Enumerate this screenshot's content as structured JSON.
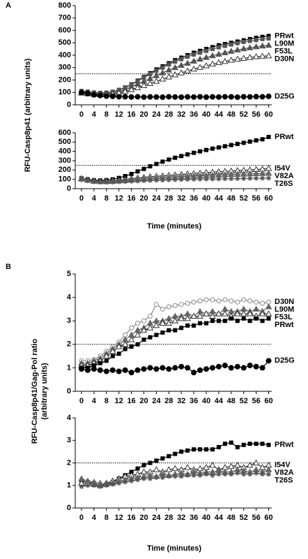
{
  "panels": [
    {
      "label": "A",
      "y_label": [
        "RFU-Casp8p41 (arbitrary units)"
      ],
      "x_label": "Time (minutes)"
    },
    {
      "label": "B",
      "y_label": [
        "RFU-Casp8p41/Gag-Pol ratio",
        "(arbitrary units)"
      ],
      "x_label": "Time (minutes)"
    }
  ],
  "chart_data": [
    {
      "type": "line",
      "xlim": [
        -2,
        61
      ],
      "xticks": [
        0,
        4,
        8,
        12,
        16,
        20,
        24,
        28,
        32,
        36,
        40,
        44,
        48,
        52,
        56,
        60
      ],
      "ylim": [
        0,
        800
      ],
      "yticks": [
        0,
        100,
        200,
        300,
        400,
        500,
        600,
        700,
        800
      ],
      "reference_line": 250,
      "x": [
        0,
        2,
        4,
        6,
        8,
        10,
        12,
        14,
        16,
        18,
        20,
        22,
        24,
        26,
        28,
        30,
        32,
        34,
        36,
        38,
        40,
        42,
        44,
        46,
        48,
        50,
        52,
        54,
        56,
        58,
        60
      ],
      "series": [
        {
          "name": "PRwt",
          "color": "#000000",
          "marker": "square",
          "values": [
            110,
            105,
            98,
            95,
            97,
            105,
            120,
            140,
            165,
            195,
            225,
            255,
            285,
            310,
            335,
            360,
            380,
            400,
            420,
            435,
            450,
            465,
            480,
            490,
            500,
            510,
            520,
            530,
            540,
            548,
            555
          ]
        },
        {
          "name": "L90M",
          "color": "#555555",
          "marker": "square",
          "values": [
            105,
            100,
            95,
            92,
            95,
            103,
            118,
            138,
            162,
            190,
            220,
            248,
            275,
            300,
            325,
            348,
            368,
            388,
            405,
            420,
            435,
            450,
            463,
            475,
            487,
            497,
            507,
            515,
            522,
            530,
            535
          ]
        },
        {
          "name": "F53L",
          "color": "#555555",
          "marker": "triangle",
          "values": [
            100,
            95,
            90,
            88,
            90,
            96,
            108,
            125,
            145,
            168,
            190,
            212,
            235,
            258,
            280,
            300,
            318,
            335,
            352,
            368,
            382,
            396,
            408,
            420,
            432,
            442,
            452,
            460,
            468,
            475,
            480
          ]
        },
        {
          "name": "D30N",
          "color": "#333333",
          "marker": "open-triangle",
          "values": [
            95,
            90,
            85,
            82,
            84,
            88,
            96,
            108,
            122,
            138,
            155,
            172,
            190,
            208,
            225,
            242,
            258,
            273,
            288,
            302,
            315,
            328,
            340,
            350,
            360,
            368,
            375,
            382,
            388,
            392,
            395
          ]
        },
        {
          "name": "D25G",
          "color": "#000000",
          "marker": "circle",
          "values": [
            100,
            90,
            80,
            75,
            70,
            68,
            65,
            65,
            63,
            65,
            62,
            64,
            63,
            62,
            65,
            63,
            62,
            64,
            63,
            65,
            62,
            64,
            63,
            65,
            64,
            62,
            65,
            64,
            66,
            65,
            68
          ]
        }
      ]
    },
    {
      "type": "line",
      "xlim": [
        -2,
        61
      ],
      "xticks": [
        0,
        4,
        8,
        12,
        16,
        20,
        24,
        28,
        32,
        36,
        40,
        44,
        48,
        52,
        56,
        60
      ],
      "ylim": [
        0,
        600
      ],
      "yticks": [
        0,
        100,
        200,
        300,
        400,
        500,
        600
      ],
      "reference_line": 250,
      "x": [
        0,
        2,
        4,
        6,
        8,
        10,
        12,
        14,
        16,
        18,
        20,
        22,
        24,
        26,
        28,
        30,
        32,
        34,
        36,
        38,
        40,
        42,
        44,
        46,
        48,
        50,
        52,
        54,
        56,
        58,
        60
      ],
      "series": [
        {
          "name": "PRwt",
          "color": "#000000",
          "marker": "square",
          "values": [
            110,
            100,
            90,
            88,
            92,
            100,
            115,
            135,
            158,
            185,
            212,
            240,
            265,
            290,
            312,
            332,
            350,
            368,
            385,
            400,
            415,
            430,
            442,
            455,
            468,
            480,
            492,
            505,
            518,
            530,
            555
          ]
        },
        {
          "name": "I54V",
          "color": "#333333",
          "marker": "open-triangle",
          "values": [
            110,
            95,
            85,
            80,
            80,
            85,
            92,
            100,
            108,
            115,
            122,
            128,
            133,
            138,
            143,
            148,
            153,
            158,
            163,
            168,
            173,
            178,
            182,
            186,
            190,
            194,
            198,
            202,
            206,
            210,
            218
          ]
        },
        {
          "name": "V82A",
          "color": "#666666",
          "marker": "triangle",
          "values": [
            105,
            90,
            80,
            75,
            75,
            78,
            83,
            88,
            93,
            98,
            103,
            108,
            112,
            116,
            120,
            124,
            128,
            132,
            135,
            138,
            141,
            144,
            147,
            150,
            153,
            155,
            157,
            159,
            161,
            163,
            165
          ]
        },
        {
          "name": "T26S",
          "color": "#555555",
          "marker": "star",
          "values": [
            95,
            85,
            75,
            70,
            68,
            70,
            73,
            76,
            79,
            82,
            85,
            88,
            90,
            92,
            94,
            96,
            98,
            100,
            101,
            102,
            103,
            104,
            105,
            106,
            107,
            108,
            109,
            110,
            111,
            112,
            113
          ]
        }
      ]
    },
    {
      "type": "line",
      "xlim": [
        -2,
        61
      ],
      "xticks": [
        0,
        4,
        8,
        12,
        16,
        20,
        24,
        28,
        32,
        36,
        40,
        44,
        48,
        52,
        56,
        60
      ],
      "ylim": [
        0,
        5
      ],
      "yticks": [
        0,
        1,
        2,
        3,
        4,
        5
      ],
      "reference_line": 2,
      "x": [
        0,
        2,
        4,
        6,
        8,
        10,
        12,
        14,
        16,
        18,
        20,
        22,
        24,
        26,
        28,
        30,
        32,
        34,
        36,
        38,
        40,
        42,
        44,
        46,
        48,
        50,
        52,
        54,
        56,
        58,
        60
      ],
      "series": [
        {
          "name": "D30N",
          "color": "#888888",
          "marker": "open-circle",
          "values": [
            1.3,
            1.3,
            1.35,
            1.5,
            1.7,
            1.9,
            2.1,
            2.4,
            2.7,
            2.9,
            3.0,
            3.2,
            3.7,
            3.5,
            3.6,
            3.65,
            3.7,
            3.75,
            3.8,
            3.85,
            3.9,
            3.9,
            3.85,
            3.9,
            3.85,
            3.8,
            3.9,
            3.85,
            3.8,
            3.75,
            3.8
          ]
        },
        {
          "name": "L90M",
          "color": "#666666",
          "marker": "triangle",
          "values": [
            1.2,
            1.2,
            1.3,
            1.4,
            1.6,
            1.8,
            2.0,
            2.2,
            2.4,
            2.6,
            2.7,
            2.9,
            3.0,
            3.0,
            3.1,
            3.2,
            3.2,
            3.3,
            3.2,
            3.4,
            3.3,
            3.4,
            3.3,
            3.5,
            3.4,
            3.4,
            3.5,
            3.4,
            3.5,
            3.4,
            3.6
          ]
        },
        {
          "name": "F53L",
          "color": "#333333",
          "marker": "open-triangle",
          "values": [
            1.1,
            1.1,
            1.2,
            1.3,
            1.5,
            1.7,
            1.9,
            2.0,
            2.2,
            2.4,
            2.6,
            2.7,
            2.8,
            2.9,
            2.9,
            3.0,
            3.1,
            3.1,
            3.2,
            3.2,
            3.3,
            3.2,
            3.3,
            3.3,
            3.2,
            3.3,
            3.3,
            3.3,
            3.2,
            3.3,
            3.3
          ]
        },
        {
          "name": "PRwt",
          "color": "#000000",
          "marker": "square",
          "values": [
            1.0,
            1.0,
            1.1,
            1.2,
            1.3,
            1.5,
            1.6,
            1.8,
            1.9,
            2.0,
            2.2,
            2.3,
            2.4,
            2.5,
            2.6,
            2.6,
            2.7,
            2.8,
            2.8,
            2.9,
            2.9,
            3.0,
            3.0,
            3.0,
            3.1,
            3.0,
            3.1,
            3.0,
            3.1,
            3.0,
            3.1
          ]
        },
        {
          "name": "D25G",
          "color": "#000000",
          "marker": "circle",
          "values": [
            0.95,
            0.9,
            0.95,
            0.9,
            0.85,
            0.9,
            0.85,
            0.9,
            0.8,
            0.9,
            0.95,
            1.0,
            0.95,
            1.0,
            0.95,
            1.0,
            1.05,
            1.0,
            0.8,
            0.9,
            0.95,
            1.0,
            1.05,
            1.1,
            1.0,
            1.05,
            1.0,
            1.1,
            1.05,
            1.0,
            1.3
          ]
        }
      ]
    },
    {
      "type": "line",
      "xlim": [
        -2,
        61
      ],
      "xticks": [
        0,
        4,
        8,
        12,
        16,
        20,
        24,
        28,
        32,
        36,
        40,
        44,
        48,
        52,
        56,
        60
      ],
      "ylim": [
        0,
        4
      ],
      "yticks": [
        0,
        1,
        2,
        3,
        4
      ],
      "reference_line": 2,
      "x": [
        0,
        2,
        4,
        6,
        8,
        10,
        12,
        14,
        16,
        18,
        20,
        22,
        24,
        26,
        28,
        30,
        32,
        34,
        36,
        38,
        40,
        42,
        44,
        46,
        48,
        50,
        52,
        54,
        56,
        58,
        60
      ],
      "series": [
        {
          "name": "PRwt",
          "color": "#000000",
          "marker": "square",
          "values": [
            1.2,
            1.15,
            1.1,
            1.0,
            1.05,
            1.15,
            1.3,
            1.45,
            1.6,
            1.75,
            1.9,
            2.0,
            2.1,
            2.2,
            2.3,
            2.4,
            2.5,
            2.55,
            2.6,
            2.6,
            2.6,
            2.6,
            2.7,
            2.85,
            2.9,
            2.7,
            2.8,
            2.85,
            2.85,
            2.85,
            2.8
          ]
        },
        {
          "name": "I54V",
          "color": "#333333",
          "marker": "open-triangle",
          "values": [
            1.1,
            1.1,
            1.05,
            1.0,
            1.1,
            1.2,
            1.3,
            1.4,
            1.45,
            1.5,
            1.6,
            1.6,
            1.7,
            1.6,
            1.7,
            1.75,
            1.7,
            1.8,
            1.7,
            1.75,
            1.8,
            1.9,
            1.7,
            1.8,
            1.85,
            1.9,
            1.8,
            1.9,
            2.0,
            1.8,
            1.9
          ]
        },
        {
          "name": "V82A",
          "color": "#666666",
          "marker": "triangle",
          "values": [
            1.3,
            1.2,
            1.15,
            1.1,
            1.05,
            1.1,
            1.2,
            1.25,
            1.3,
            1.35,
            1.4,
            1.45,
            1.4,
            1.5,
            1.45,
            1.5,
            1.55,
            1.5,
            1.6,
            1.55,
            1.6,
            1.6,
            1.65,
            1.6,
            1.6,
            1.7,
            1.65,
            1.6,
            1.7,
            1.6,
            1.7
          ]
        },
        {
          "name": "T26S",
          "color": "#555555",
          "marker": "star",
          "values": [
            0.95,
            1.0,
            1.0,
            0.95,
            1.0,
            1.05,
            1.1,
            1.15,
            1.2,
            1.25,
            1.3,
            1.3,
            1.35,
            1.35,
            1.4,
            1.4,
            1.4,
            1.45,
            1.45,
            1.45,
            1.5,
            1.45,
            1.5,
            1.5,
            1.5,
            1.55,
            1.5,
            1.5,
            1.55,
            1.5,
            1.5
          ]
        }
      ]
    }
  ]
}
